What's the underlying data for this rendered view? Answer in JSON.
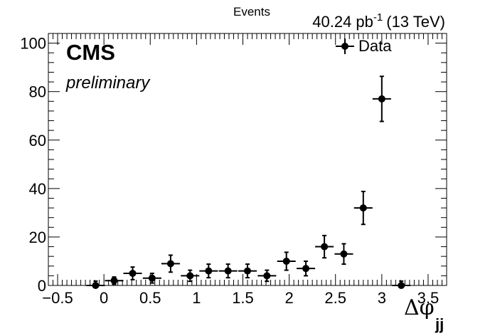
{
  "chart_data": {
    "type": "scatter",
    "title": "",
    "experiment": "CMS",
    "status": "preliminary",
    "luminosity": "40.24 pb",
    "luminosity_sup": "-1",
    "energy": "(13 TeV)",
    "ylabel": "Events",
    "xlabel": "Δφ",
    "xlabel_sub": "jj",
    "xlim": [
      -0.6,
      3.7
    ],
    "ylim": [
      0,
      104
    ],
    "x_ticks": [
      -0.5,
      0,
      0.5,
      1,
      1.5,
      2,
      2.5,
      3,
      3.5
    ],
    "x_tick_labels": [
      "−0.5",
      "0",
      "0.5",
      "1",
      "1.5",
      "2",
      "2.5",
      "3",
      "3.5"
    ],
    "y_ticks": [
      0,
      20,
      40,
      60,
      80,
      100
    ],
    "y_tick_labels": [
      "0",
      "20",
      "40",
      "60",
      "80",
      "100"
    ],
    "grid": false,
    "legend_position": "top-right",
    "series": [
      {
        "name": "Data",
        "x_err": 0.1,
        "points": [
          {
            "x": -0.09,
            "y": 0,
            "err": 1.8
          },
          {
            "x": 0.11,
            "y": 2,
            "err": 1.5
          },
          {
            "x": 0.31,
            "y": 5,
            "err": 2.6
          },
          {
            "x": 0.52,
            "y": 3,
            "err": 2.0
          },
          {
            "x": 0.72,
            "y": 9,
            "err": 3.5
          },
          {
            "x": 0.93,
            "y": 4,
            "err": 2.3
          },
          {
            "x": 1.13,
            "y": 6,
            "err": 2.8
          },
          {
            "x": 1.34,
            "y": 6,
            "err": 2.8
          },
          {
            "x": 1.55,
            "y": 6,
            "err": 2.8
          },
          {
            "x": 1.76,
            "y": 4,
            "err": 2.3
          },
          {
            "x": 1.97,
            "y": 10,
            "err": 3.7
          },
          {
            "x": 2.18,
            "y": 7,
            "err": 3.0
          },
          {
            "x": 2.38,
            "y": 16,
            "err": 4.6
          },
          {
            "x": 2.59,
            "y": 13,
            "err": 4.2
          },
          {
            "x": 2.8,
            "y": 32,
            "err": 6.8
          },
          {
            "x": 3.0,
            "y": 77,
            "err": 9.3
          },
          {
            "x": 3.21,
            "y": 0,
            "err": 1.8
          }
        ]
      }
    ]
  }
}
